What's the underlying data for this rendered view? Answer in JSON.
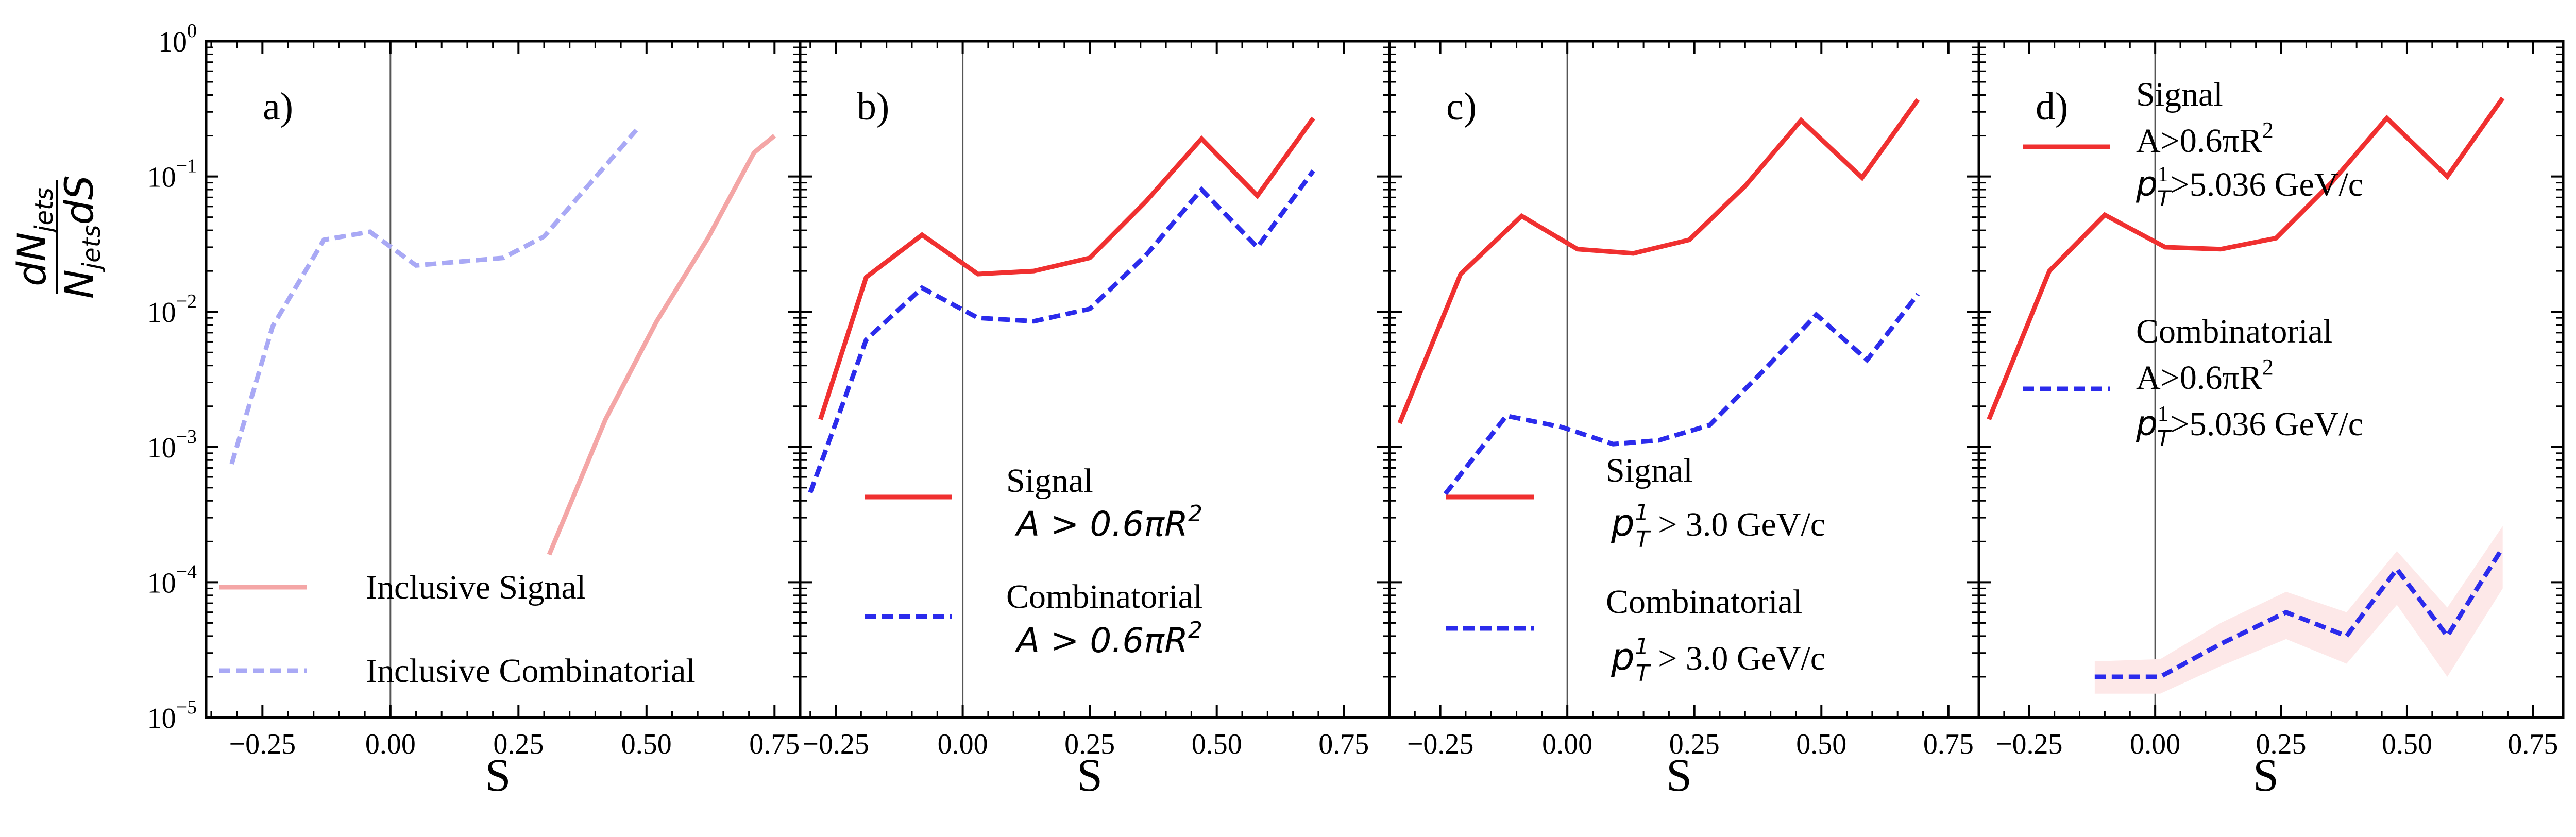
{
  "figure": {
    "y_axis_label": "dN_jets / N_jets dS",
    "y_axis_label_numerator": "dN",
    "y_axis_label_numerator_sub": "jets",
    "y_axis_label_denominator": "N",
    "y_axis_label_denominator_sub": "jets",
    "y_axis_label_denominator_tail": "dS",
    "y_tick_labels": [
      {
        "base": "10",
        "exp": "0"
      },
      {
        "base": "10",
        "exp": "−1"
      },
      {
        "base": "10",
        "exp": "−2"
      },
      {
        "base": "10",
        "exp": "−3"
      },
      {
        "base": "10",
        "exp": "−4"
      },
      {
        "base": "10",
        "exp": "−5"
      }
    ],
    "x_tick_labels": [
      "−0.25",
      "0.00",
      "0.25",
      "0.50",
      "0.75"
    ]
  },
  "chart_data": [
    {
      "type": "line",
      "panel": "a)",
      "xlabel": "S",
      "ylabel": "dN_jets / N_jets dS",
      "xlim": [
        -0.36,
        0.8
      ],
      "ylim": [
        1e-05,
        1
      ],
      "yscale": "log",
      "legend_position": "bottom-center",
      "series": [
        {
          "name": "Inclusive Signal",
          "color": "#f4a6a6",
          "dash": "solid",
          "x": [
            0.31,
            0.42,
            0.52,
            0.62,
            0.71,
            0.75
          ],
          "y": [
            0.00016,
            0.0016,
            0.0085,
            0.035,
            0.15,
            0.2
          ]
        },
        {
          "name": "Inclusive Combinatorial",
          "color": "#a9a9f5",
          "dash": "dashed",
          "x": [
            -0.31,
            -0.23,
            -0.13,
            -0.04,
            0.05,
            0.22,
            0.3,
            0.48
          ],
          "y": [
            0.00075,
            0.0078,
            0.034,
            0.039,
            0.022,
            0.025,
            0.036,
            0.22
          ]
        }
      ]
    },
    {
      "type": "line",
      "panel": "b)",
      "xlabel": "S",
      "xlim": [
        -0.32,
        0.84
      ],
      "ylim": [
        1e-05,
        1
      ],
      "yscale": "log",
      "legend_position": "lower-center",
      "series": [
        {
          "name": "Signal",
          "legend_line2": "A > 0.6πR",
          "legend_sup": "2",
          "color": "#f03030",
          "dash": "solid",
          "x": [
            -0.28,
            -0.19,
            -0.08,
            0.03,
            0.14,
            0.25,
            0.36,
            0.47,
            0.58,
            0.69
          ],
          "y": [
            0.0016,
            0.018,
            0.037,
            0.019,
            0.02,
            0.025,
            0.065,
            0.19,
            0.072,
            0.27
          ]
        },
        {
          "name": "Combinatorial",
          "legend_line2": "A > 0.6πR",
          "legend_sup": "2",
          "color": "#2b2bec",
          "dash": "dashed",
          "x": [
            -0.3,
            -0.19,
            -0.08,
            0.03,
            0.14,
            0.25,
            0.36,
            0.47,
            0.58,
            0.69
          ],
          "y": [
            0.00046,
            0.0062,
            0.015,
            0.009,
            0.0085,
            0.0105,
            0.026,
            0.08,
            0.03,
            0.11
          ]
        }
      ]
    },
    {
      "type": "line",
      "panel": "c)",
      "xlabel": "S",
      "xlim": [
        -0.35,
        0.81
      ],
      "ylim": [
        1e-05,
        1
      ],
      "yscale": "log",
      "legend_position": "lower-center",
      "series": [
        {
          "name": "Signal",
          "legend_line2_sym": "p",
          "legend_line2_sub": "T",
          "legend_line2_sup": "1",
          "legend_line2_tail": " > 3.0 GeV/c",
          "color": "#f03030",
          "dash": "solid",
          "x": [
            -0.33,
            -0.21,
            -0.09,
            0.02,
            0.13,
            0.24,
            0.35,
            0.46,
            0.58,
            0.69
          ],
          "y": [
            0.0015,
            0.019,
            0.051,
            0.029,
            0.027,
            0.034,
            0.085,
            0.26,
            0.098,
            0.37
          ]
        },
        {
          "name": "Combinatorial",
          "legend_line2_sym": "p",
          "legend_line2_sub": "T",
          "legend_line2_sup": "1",
          "legend_line2_tail": " > 3.0 GeV/c",
          "color": "#2b2bec",
          "dash": "dashed",
          "x": [
            -0.24,
            -0.12,
            -0.01,
            0.09,
            0.18,
            0.28,
            0.39,
            0.49,
            0.59,
            0.69
          ],
          "y": [
            0.00045,
            0.0017,
            0.0014,
            0.00105,
            0.00112,
            0.00145,
            0.0038,
            0.0095,
            0.0044,
            0.0135
          ]
        }
      ]
    },
    {
      "type": "line",
      "panel": "d)",
      "xlabel": "S",
      "xlim": [
        -0.35,
        0.81
      ],
      "ylim": [
        1e-05,
        1
      ],
      "yscale": "log",
      "legend_position": "upper-left",
      "series": [
        {
          "name": "Signal",
          "legend_line2": "A>0.6πR",
          "legend_line2_sup": "2",
          "legend_line3_sym": "p",
          "legend_line3_sub": "T",
          "legend_line3_sup": "1",
          "legend_line3_tail": ">5.036 GeV/c",
          "color": "#f03030",
          "dash": "solid",
          "x": [
            -0.33,
            -0.21,
            -0.1,
            0.02,
            0.13,
            0.24,
            0.35,
            0.46,
            0.58,
            0.69
          ],
          "y": [
            0.0016,
            0.02,
            0.052,
            0.03,
            0.029,
            0.035,
            0.09,
            0.27,
            0.1,
            0.38
          ]
        },
        {
          "name": "Combinatorial",
          "legend_line2": "A>0.6πR",
          "legend_line2_sup": "2",
          "legend_line3_sym": "p",
          "legend_line3_sub": "T",
          "legend_line3_sup": "1",
          "legend_line3_tail": ">5.036 GeV/c",
          "color": "#2b2bec",
          "dash": "dashed",
          "x": [
            -0.12,
            0.01,
            0.13,
            0.26,
            0.38,
            0.48,
            0.58,
            0.69
          ],
          "y": [
            2e-05,
            2e-05,
            3.5e-05,
            6e-05,
            4e-05,
            0.000125,
            4e-05,
            0.00018
          ],
          "band_low": [
            1.5e-05,
            1.5e-05,
            2.4e-05,
            3.8e-05,
            2.5e-05,
            6.8e-05,
            2e-05,
            9e-05
          ],
          "band_high": [
            2.6e-05,
            2.7e-05,
            5e-05,
            8.5e-05,
            6e-05,
            0.00017,
            6.5e-05,
            0.00026
          ],
          "band_color": "#fde8e8"
        }
      ]
    }
  ]
}
